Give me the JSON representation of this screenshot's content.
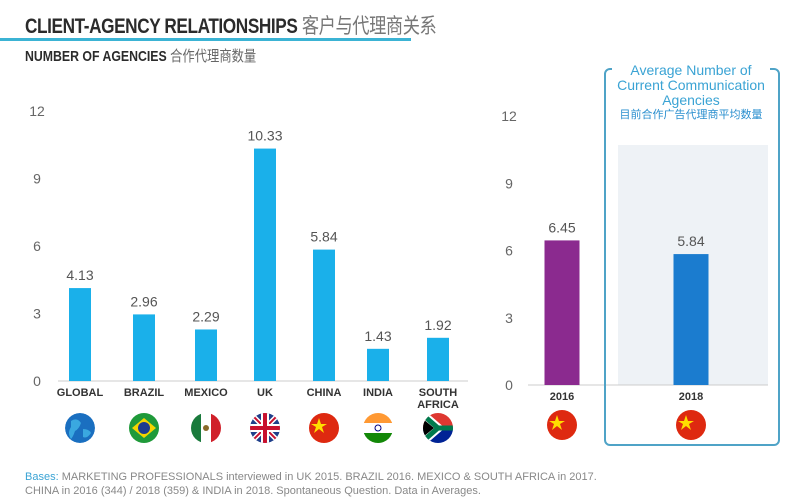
{
  "header": {
    "title": "CLIENT-AGENCY RELATIONSHIPS",
    "title_zh": "客户与代理商关系",
    "subtitle": "NUMBER OF AGENCIES",
    "subtitle_zh": "合作代理商数量"
  },
  "colors": {
    "bar": "#1ab0ea",
    "bar_2016": "#8b2a8f",
    "bar_2018": "#1b7ccf",
    "accent": "#3bb3d4"
  },
  "chart_data": [
    {
      "type": "bar",
      "categories": [
        "GLOBAL",
        "BRAZIL",
        "MEXICO",
        "UK",
        "CHINA",
        "INDIA",
        "SOUTH AFRICA"
      ],
      "values": [
        4.13,
        2.96,
        2.29,
        10.33,
        5.84,
        1.43,
        1.92
      ],
      "data_labels": [
        "4.13",
        "2.96",
        "2.29",
        "10.33",
        "5.84",
        "1.43",
        "1.92"
      ],
      "flags": [
        "globe",
        "brazil",
        "mexico",
        "uk",
        "china",
        "india",
        "south-africa"
      ],
      "ylim": [
        0,
        12
      ],
      "yticks": [
        "0",
        "3",
        "6",
        "9",
        "12"
      ],
      "grid": false
    },
    {
      "type": "bar",
      "title": "Average Number of Current Communication Agencies",
      "title_zh": "目前合作广告代理商平均数量",
      "categories": [
        "2016",
        "2018"
      ],
      "values": [
        6.45,
        5.84
      ],
      "data_labels": [
        "6.45",
        "5.84"
      ],
      "flags": [
        "china",
        "china"
      ],
      "ylim": [
        0,
        12
      ],
      "yticks": [
        "0",
        "3",
        "6",
        "9",
        "12"
      ],
      "grid": false
    }
  ],
  "footer": {
    "label": "Bases:",
    "line1": " MARKETING PROFESSIONALS interviewed in UK 2015. BRAZIL 2016. MEXICO & SOUTH AFRICA in 2017.",
    "line2": "CHINA in 2016 (344) / 2018 (359) & INDIA in 2018. Spontaneous Question. Data in Averages."
  }
}
